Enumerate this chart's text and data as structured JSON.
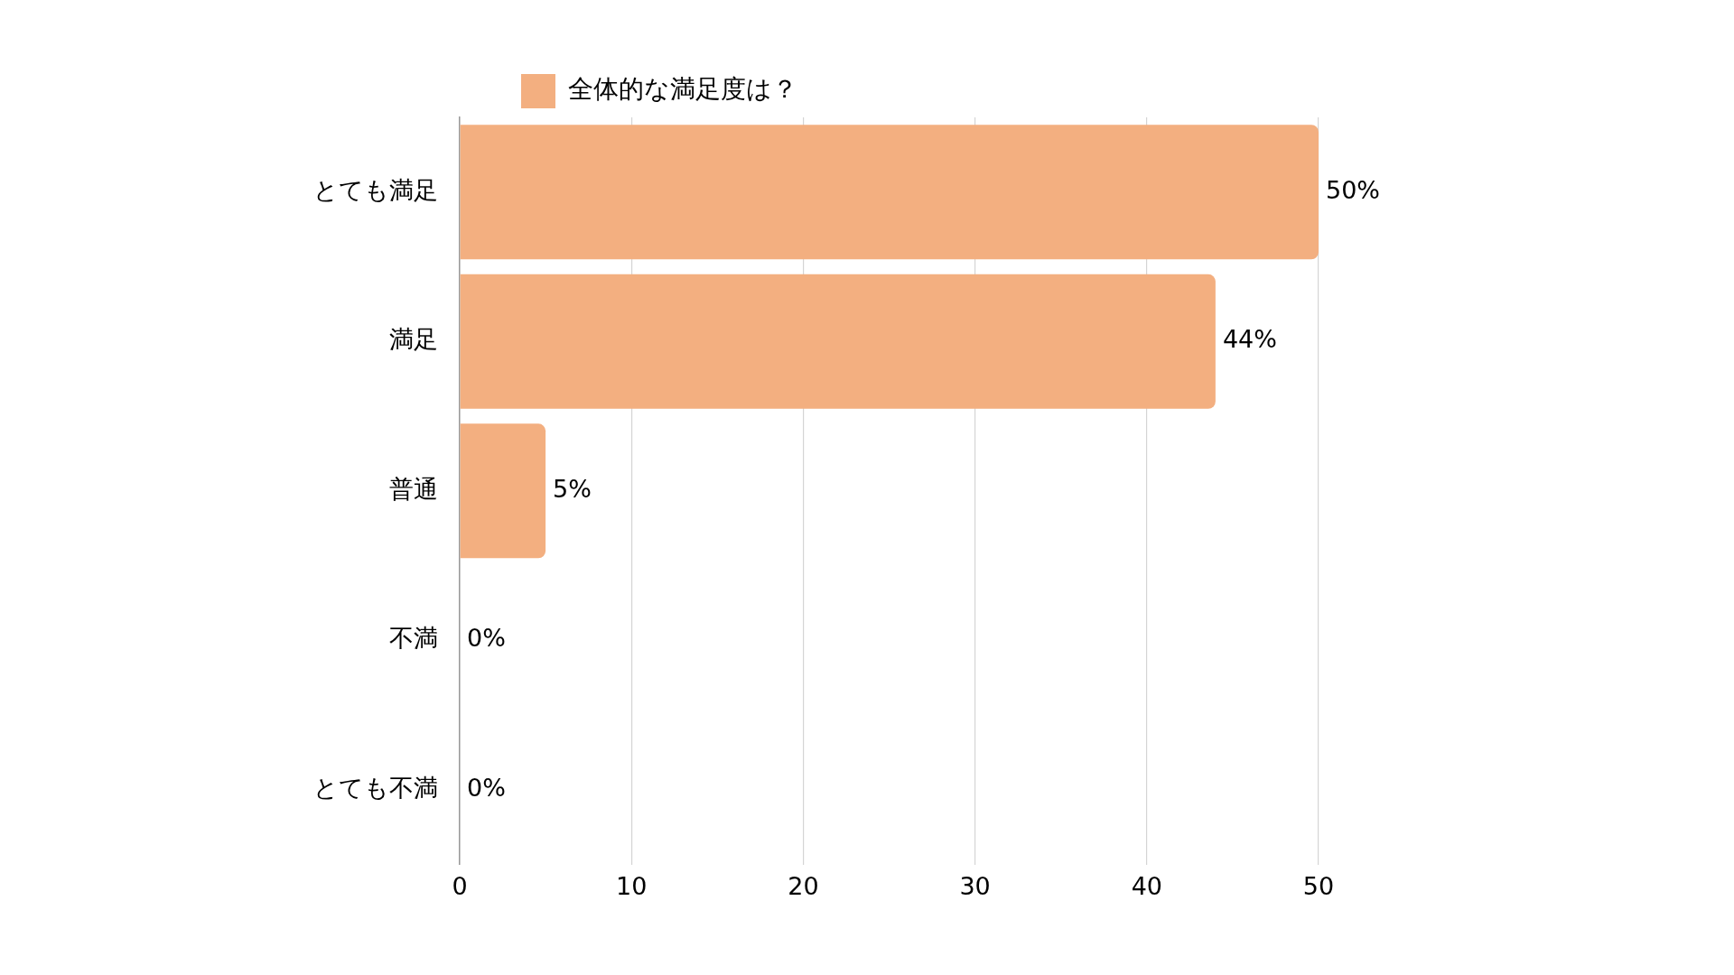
{
  "chart_data": {
    "type": "bar",
    "orientation": "horizontal",
    "categories": [
      "とても満足",
      "満足",
      "普通",
      "不満",
      "とても不満"
    ],
    "series": [
      {
        "name": "全体的な満足度は？",
        "color": "#f3af80",
        "values": [
          50,
          44,
          5,
          0,
          0
        ],
        "value_labels": [
          "50%",
          "44%",
          "5%",
          "0%",
          "0%"
        ]
      }
    ],
    "xlim": [
      0,
      50
    ],
    "xticks": [
      0,
      10,
      20,
      30,
      40,
      50
    ],
    "grid": "x",
    "legend": "top"
  }
}
